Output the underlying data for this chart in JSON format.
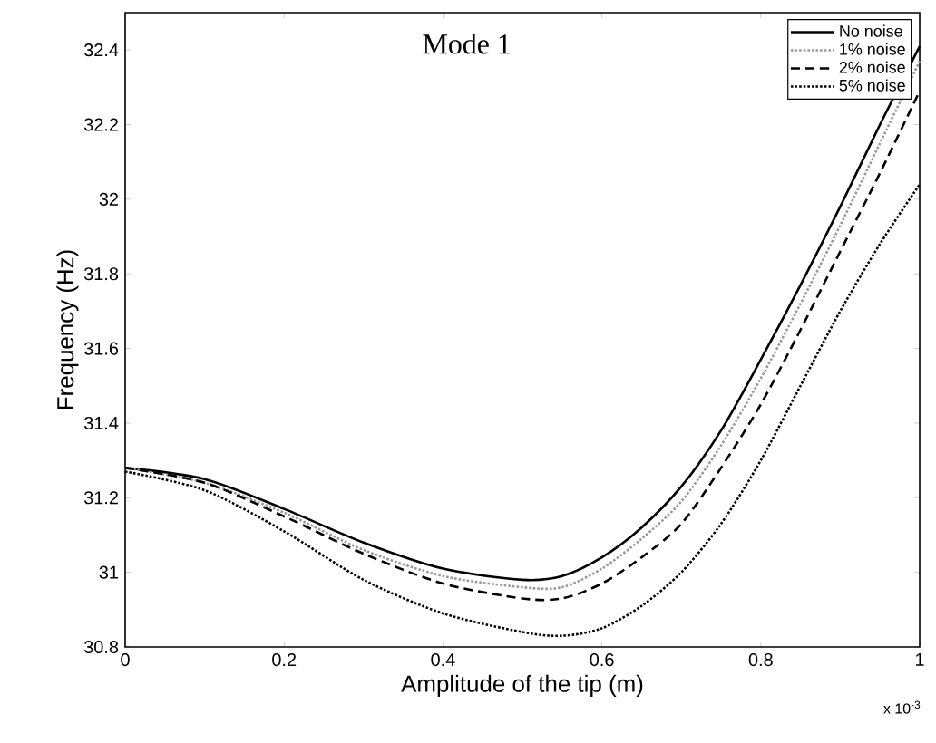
{
  "chart_data": {
    "type": "line",
    "title": "Mode 1",
    "xlabel": "Amplitude of the tip (m)",
    "ylabel": "Frequency (Hz)",
    "annotations": [
      "x 10$^{-3}$"
    ],
    "xlim": [
      0,
      1
    ],
    "ylim": [
      30.8,
      32.5
    ],
    "xticks": [
      0,
      0.2,
      0.4,
      0.6,
      0.8,
      1
    ],
    "yticks": [
      30.8,
      31,
      31.2,
      31.4,
      31.6,
      31.8,
      32,
      32.2,
      32.4
    ],
    "legend": "top right",
    "grid": false,
    "x": [
      0,
      0.1,
      0.2,
      0.3,
      0.4,
      0.5,
      0.55,
      0.6,
      0.65,
      0.7,
      0.75,
      0.8,
      0.85,
      0.9,
      0.95,
      1.0
    ],
    "series": [
      {
        "name": "No noise",
        "color": "#000000",
        "line_style": "solid",
        "values": [
          31.28,
          31.25,
          31.17,
          31.08,
          31.01,
          30.98,
          30.99,
          31.04,
          31.12,
          31.23,
          31.38,
          31.57,
          31.77,
          31.98,
          32.2,
          32.41
        ]
      },
      {
        "name": "1% noise",
        "color": "#999999",
        "line_style": "dotted",
        "values": [
          31.28,
          31.24,
          31.16,
          31.06,
          30.99,
          30.96,
          30.96,
          31.01,
          31.09,
          31.19,
          31.34,
          31.52,
          31.72,
          31.93,
          32.15,
          32.37
        ]
      },
      {
        "name": "2% noise",
        "color": "#000000",
        "line_style": "dashed",
        "values": [
          31.28,
          31.24,
          31.15,
          31.05,
          30.97,
          30.93,
          30.93,
          30.97,
          31.04,
          31.13,
          31.28,
          31.45,
          31.65,
          31.86,
          32.07,
          32.29
        ]
      },
      {
        "name": "5% noise",
        "color": "#000000",
        "line_style": "dotted",
        "values": [
          31.27,
          31.22,
          31.11,
          30.98,
          30.89,
          30.84,
          30.83,
          30.85,
          30.91,
          31.0,
          31.13,
          31.3,
          31.5,
          31.7,
          31.88,
          32.04
        ]
      }
    ]
  }
}
